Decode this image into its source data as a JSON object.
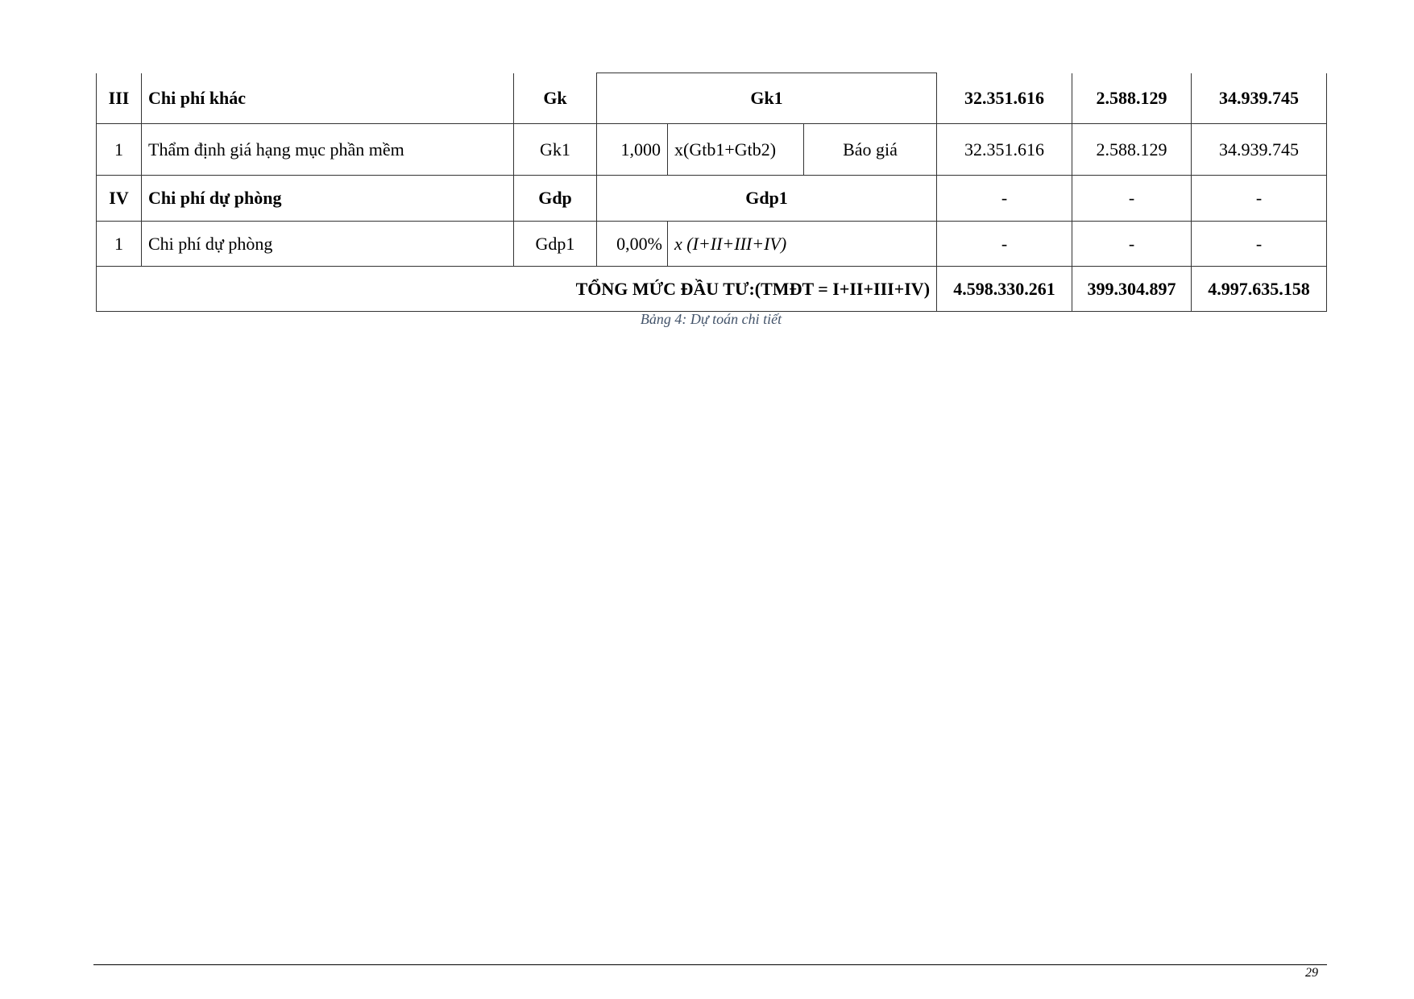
{
  "table": {
    "rows": [
      {
        "stt": "III",
        "name": "Chi phí khác",
        "code": "Gk",
        "formula": "Gk1",
        "pre_tax": "32.351.616",
        "vat": "2.588.129",
        "total": "34.939.745"
      },
      {
        "stt": "1",
        "name": "Thẩm định giá hạng mục phần mềm",
        "code": "Gk1",
        "rate": "1,000",
        "expr": "x(Gtb1+Gtb2)",
        "basis": "Báo giá",
        "pre_tax": "32.351.616",
        "vat": "2.588.129",
        "total": "34.939.745"
      },
      {
        "stt": "IV",
        "name": "Chi phí dự phòng",
        "code": "Gdp",
        "formula": "Gdp1",
        "pre_tax": "-",
        "vat": "-",
        "total": "-"
      },
      {
        "stt": "1",
        "name": "Chi phí dự phòng",
        "code": "Gdp1",
        "rate": "0,00%",
        "expr": "x (I+II+III+IV)",
        "pre_tax": "-",
        "vat": "-",
        "total": "-"
      }
    ],
    "total_row": {
      "label": "TỔNG MỨC ĐẦU TƯ:(TMĐT = I+II+III+IV)",
      "pre_tax": "4.598.330.261",
      "vat": "399.304.897",
      "total": "4.997.635.158"
    }
  },
  "caption": "Bảng 4: Dự toán chi tiết",
  "page_number": "29"
}
